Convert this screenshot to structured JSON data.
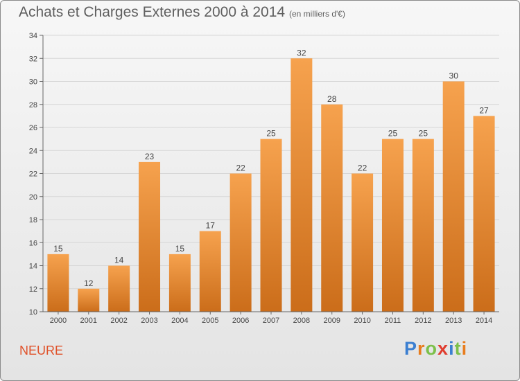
{
  "title": "Achats et Charges Externes 2000 à 2014",
  "subtitle": "(en milliers d'€)",
  "commune": "NEURE",
  "logo": {
    "text": "Proxiti",
    "letter_colors": [
      "#3b7fd1",
      "#e87d1e",
      "#7cc04a",
      "#e03c2e",
      "#3b7fd1",
      "#7cc04a",
      "#e87d1e"
    ]
  },
  "colors": {
    "bar_light": "#f6a24e",
    "bar_dark": "#cb6d1a",
    "axis": "#666666",
    "grid": "#d6d6d6",
    "text": "#444444"
  },
  "chart_data": {
    "type": "bar",
    "title": "Achats et Charges Externes 2000 à 2014",
    "subtitle": "(en milliers d'€)",
    "categories": [
      "2000",
      "2001",
      "2002",
      "2003",
      "2004",
      "2005",
      "2006",
      "2007",
      "2008",
      "2009",
      "2010",
      "2011",
      "2012",
      "2013",
      "2014"
    ],
    "values": [
      15,
      12,
      14,
      23,
      15,
      17,
      22,
      25,
      32,
      28,
      22,
      25,
      25,
      30,
      27
    ],
    "ylim": [
      10,
      34
    ],
    "yticks": [
      10,
      12,
      14,
      16,
      18,
      20,
      22,
      24,
      26,
      28,
      30,
      32,
      34
    ],
    "grid": true,
    "data_labels": true
  }
}
